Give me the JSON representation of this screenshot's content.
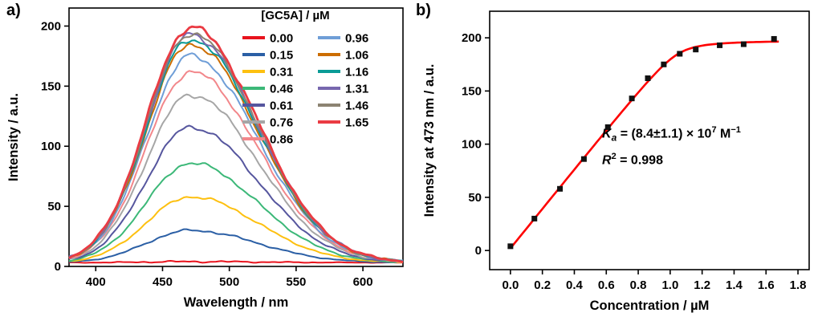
{
  "panels": {
    "a": {
      "label": "a)"
    },
    "b": {
      "label": "b)"
    }
  },
  "chart_data": [
    {
      "type": "line",
      "panel": "a",
      "xlabel": "Wavelength / nm",
      "ylabel": "Intensity / a.u.",
      "xlim": [
        380,
        630
      ],
      "ylim": [
        0,
        215
      ],
      "xticks": [
        400,
        450,
        500,
        550,
        600
      ],
      "xtick_labels": [
        "400",
        "450",
        "500",
        "550",
        "600"
      ],
      "yticks": [
        0,
        50,
        100,
        150,
        200
      ],
      "ytick_labels": [
        "0",
        "50",
        "100",
        "150",
        "200"
      ],
      "grid": false,
      "peak_wavelength_nm": 471,
      "legend": {
        "title": "[GC5A] / µM",
        "position": "top-right-inside",
        "columns": 2
      },
      "series": [
        {
          "label": "0.00",
          "color": "#e8131d",
          "peak_intensity": 4
        },
        {
          "label": "0.15",
          "color": "#2b5fa5",
          "peak_intensity": 30
        },
        {
          "label": "0.31",
          "color": "#fdc010",
          "peak_intensity": 58
        },
        {
          "label": "0.46",
          "color": "#3cb878",
          "peak_intensity": 86
        },
        {
          "label": "0.61",
          "color": "#56569e",
          "peak_intensity": 116
        },
        {
          "label": "0.76",
          "color": "#a6a6a6",
          "peak_intensity": 143
        },
        {
          "label": "0.86",
          "color": "#f2878b",
          "peak_intensity": 162
        },
        {
          "label": "0.96",
          "color": "#6f9ed7",
          "peak_intensity": 175
        },
        {
          "label": "1.06",
          "color": "#cc6d00",
          "peak_intensity": 185
        },
        {
          "label": "1.16",
          "color": "#0a9b96",
          "peak_intensity": 189
        },
        {
          "label": "1.31",
          "color": "#7767ae",
          "peak_intensity": 193
        },
        {
          "label": "1.46",
          "color": "#8c8372",
          "peak_intensity": 194
        },
        {
          "label": "1.65",
          "color": "#ea3b43",
          "peak_intensity": 199
        }
      ]
    },
    {
      "type": "scatter",
      "panel": "b",
      "xlabel": "Concentration / µM",
      "ylabel": "Intensity at 473 nm / a.u.",
      "xlim": [
        -0.13,
        1.87
      ],
      "ylim": [
        -18,
        225
      ],
      "xticks": [
        0,
        0.2,
        0.4,
        0.6,
        0.8,
        1,
        1.2,
        1.4,
        1.6,
        1.8
      ],
      "xtick_labels": [
        "0.0",
        "0.2",
        "0.4",
        "0.6",
        "0.8",
        "1.0",
        "1.2",
        "1.4",
        "1.6",
        "1.8"
      ],
      "yticks": [
        0,
        50,
        100,
        150,
        200
      ],
      "ytick_labels": [
        "0",
        "50",
        "100",
        "150",
        "200"
      ],
      "grid": false,
      "x": [
        0,
        0.15,
        0.31,
        0.46,
        0.61,
        0.76,
        0.86,
        0.96,
        1.06,
        1.16,
        1.31,
        1.46,
        1.65
      ],
      "y": [
        4,
        30,
        58,
        86,
        116,
        143,
        162,
        175,
        185,
        189,
        193,
        194,
        199
      ],
      "marker": {
        "shape": "square",
        "color": "#111111",
        "size": 7
      },
      "fit": {
        "color": "#fe0000",
        "P0": 1.05,
        "Kd": 0.005,
        "I0": 2,
        "amplitude": 196,
        "x_start": 0,
        "x_end": 1.68
      },
      "annotation": {
        "ka_symbol": "K",
        "ka_sub": "a",
        "ka_eq": " = (8.4±1.1) × 10",
        "ka_exp": "7",
        "ka_unit": " M",
        "ka_unit_exp": "−1",
        "r2_symbol": "R",
        "r2_exp": "2",
        "r2_eq": " = 0.998"
      }
    }
  ]
}
